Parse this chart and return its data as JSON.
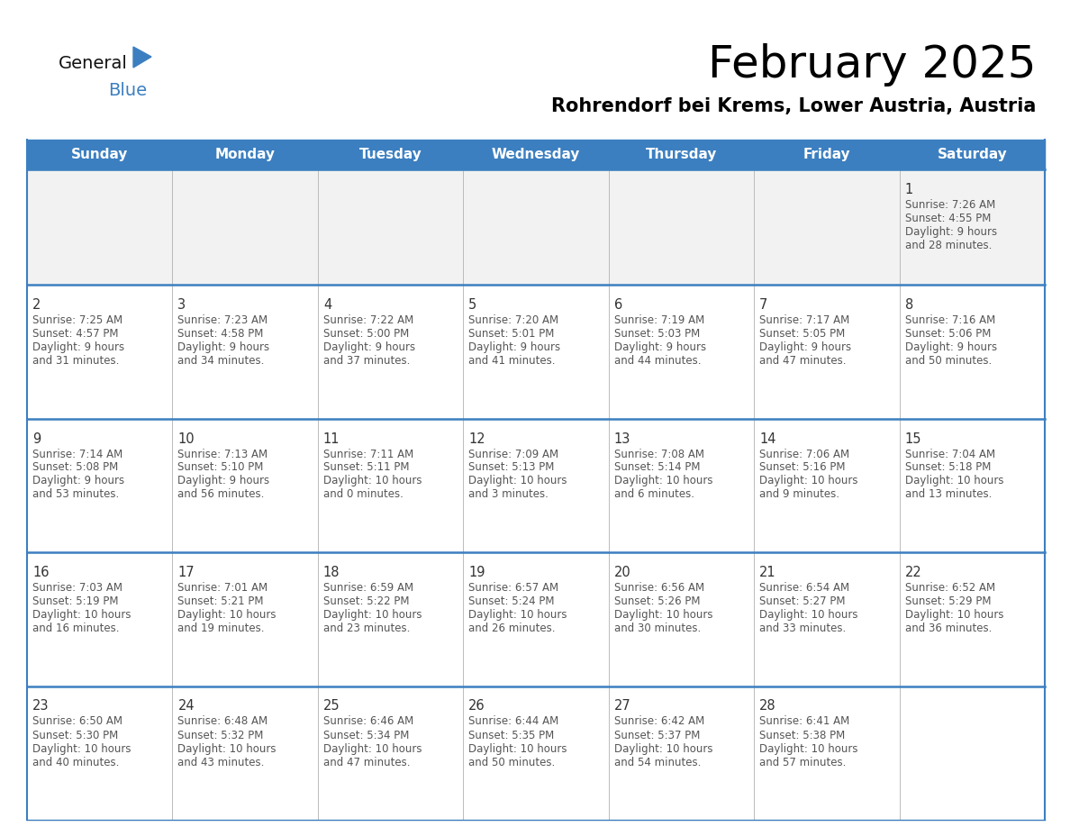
{
  "title": "February 2025",
  "subtitle": "Rohrendorf bei Krems, Lower Austria, Austria",
  "header_color": "#3c7fc0",
  "header_text_color": "#ffffff",
  "day_headers": [
    "Sunday",
    "Monday",
    "Tuesday",
    "Wednesday",
    "Thursday",
    "Friday",
    "Saturday"
  ],
  "title_color": "#000000",
  "subtitle_color": "#000000",
  "cell_bg_even": "#f2f2f2",
  "cell_bg_odd": "#ffffff",
  "day_num_color": "#333333",
  "info_color": "#555555",
  "line_color": "#3c7fc0",
  "grid_color": "#bbbbbb",
  "background_color": "#ffffff",
  "logo_general_color": "#111111",
  "logo_blue_color": "#3c7fc0",
  "logo_triangle_color": "#3c7fc0",
  "days": [
    {
      "day": 1,
      "row": 0,
      "col": 6,
      "sunrise": "7:26 AM",
      "sunset": "4:55 PM",
      "daylight_h": "9 hours",
      "daylight_m": "28 minutes."
    },
    {
      "day": 2,
      "row": 1,
      "col": 0,
      "sunrise": "7:25 AM",
      "sunset": "4:57 PM",
      "daylight_h": "9 hours",
      "daylight_m": "31 minutes."
    },
    {
      "day": 3,
      "row": 1,
      "col": 1,
      "sunrise": "7:23 AM",
      "sunset": "4:58 PM",
      "daylight_h": "9 hours",
      "daylight_m": "34 minutes."
    },
    {
      "day": 4,
      "row": 1,
      "col": 2,
      "sunrise": "7:22 AM",
      "sunset": "5:00 PM",
      "daylight_h": "9 hours",
      "daylight_m": "37 minutes."
    },
    {
      "day": 5,
      "row": 1,
      "col": 3,
      "sunrise": "7:20 AM",
      "sunset": "5:01 PM",
      "daylight_h": "9 hours",
      "daylight_m": "41 minutes."
    },
    {
      "day": 6,
      "row": 1,
      "col": 4,
      "sunrise": "7:19 AM",
      "sunset": "5:03 PM",
      "daylight_h": "9 hours",
      "daylight_m": "44 minutes."
    },
    {
      "day": 7,
      "row": 1,
      "col": 5,
      "sunrise": "7:17 AM",
      "sunset": "5:05 PM",
      "daylight_h": "9 hours",
      "daylight_m": "47 minutes."
    },
    {
      "day": 8,
      "row": 1,
      "col": 6,
      "sunrise": "7:16 AM",
      "sunset": "5:06 PM",
      "daylight_h": "9 hours",
      "daylight_m": "50 minutes."
    },
    {
      "day": 9,
      "row": 2,
      "col": 0,
      "sunrise": "7:14 AM",
      "sunset": "5:08 PM",
      "daylight_h": "9 hours",
      "daylight_m": "53 minutes."
    },
    {
      "day": 10,
      "row": 2,
      "col": 1,
      "sunrise": "7:13 AM",
      "sunset": "5:10 PM",
      "daylight_h": "9 hours",
      "daylight_m": "56 minutes."
    },
    {
      "day": 11,
      "row": 2,
      "col": 2,
      "sunrise": "7:11 AM",
      "sunset": "5:11 PM",
      "daylight_h": "10 hours",
      "daylight_m": "0 minutes."
    },
    {
      "day": 12,
      "row": 2,
      "col": 3,
      "sunrise": "7:09 AM",
      "sunset": "5:13 PM",
      "daylight_h": "10 hours",
      "daylight_m": "3 minutes."
    },
    {
      "day": 13,
      "row": 2,
      "col": 4,
      "sunrise": "7:08 AM",
      "sunset": "5:14 PM",
      "daylight_h": "10 hours",
      "daylight_m": "6 minutes."
    },
    {
      "day": 14,
      "row": 2,
      "col": 5,
      "sunrise": "7:06 AM",
      "sunset": "5:16 PM",
      "daylight_h": "10 hours",
      "daylight_m": "9 minutes."
    },
    {
      "day": 15,
      "row": 2,
      "col": 6,
      "sunrise": "7:04 AM",
      "sunset": "5:18 PM",
      "daylight_h": "10 hours",
      "daylight_m": "13 minutes."
    },
    {
      "day": 16,
      "row": 3,
      "col": 0,
      "sunrise": "7:03 AM",
      "sunset": "5:19 PM",
      "daylight_h": "10 hours",
      "daylight_m": "16 minutes."
    },
    {
      "day": 17,
      "row": 3,
      "col": 1,
      "sunrise": "7:01 AM",
      "sunset": "5:21 PM",
      "daylight_h": "10 hours",
      "daylight_m": "19 minutes."
    },
    {
      "day": 18,
      "row": 3,
      "col": 2,
      "sunrise": "6:59 AM",
      "sunset": "5:22 PM",
      "daylight_h": "10 hours",
      "daylight_m": "23 minutes."
    },
    {
      "day": 19,
      "row": 3,
      "col": 3,
      "sunrise": "6:57 AM",
      "sunset": "5:24 PM",
      "daylight_h": "10 hours",
      "daylight_m": "26 minutes."
    },
    {
      "day": 20,
      "row": 3,
      "col": 4,
      "sunrise": "6:56 AM",
      "sunset": "5:26 PM",
      "daylight_h": "10 hours",
      "daylight_m": "30 minutes."
    },
    {
      "day": 21,
      "row": 3,
      "col": 5,
      "sunrise": "6:54 AM",
      "sunset": "5:27 PM",
      "daylight_h": "10 hours",
      "daylight_m": "33 minutes."
    },
    {
      "day": 22,
      "row": 3,
      "col": 6,
      "sunrise": "6:52 AM",
      "sunset": "5:29 PM",
      "daylight_h": "10 hours",
      "daylight_m": "36 minutes."
    },
    {
      "day": 23,
      "row": 4,
      "col": 0,
      "sunrise": "6:50 AM",
      "sunset": "5:30 PM",
      "daylight_h": "10 hours",
      "daylight_m": "40 minutes."
    },
    {
      "day": 24,
      "row": 4,
      "col": 1,
      "sunrise": "6:48 AM",
      "sunset": "5:32 PM",
      "daylight_h": "10 hours",
      "daylight_m": "43 minutes."
    },
    {
      "day": 25,
      "row": 4,
      "col": 2,
      "sunrise": "6:46 AM",
      "sunset": "5:34 PM",
      "daylight_h": "10 hours",
      "daylight_m": "47 minutes."
    },
    {
      "day": 26,
      "row": 4,
      "col": 3,
      "sunrise": "6:44 AM",
      "sunset": "5:35 PM",
      "daylight_h": "10 hours",
      "daylight_m": "50 minutes."
    },
    {
      "day": 27,
      "row": 4,
      "col": 4,
      "sunrise": "6:42 AM",
      "sunset": "5:37 PM",
      "daylight_h": "10 hours",
      "daylight_m": "54 minutes."
    },
    {
      "day": 28,
      "row": 4,
      "col": 5,
      "sunrise": "6:41 AM",
      "sunset": "5:38 PM",
      "daylight_h": "10 hours",
      "daylight_m": "57 minutes."
    }
  ]
}
